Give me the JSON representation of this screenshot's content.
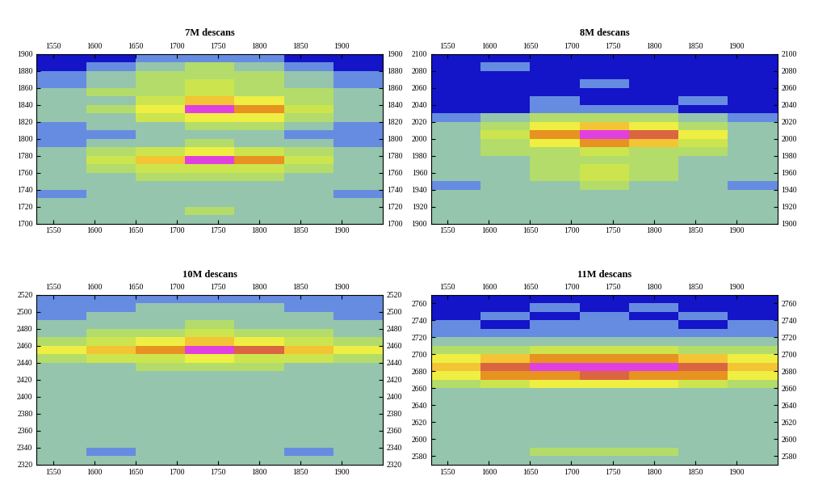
{
  "chart_data": [
    {
      "type": "heatmap",
      "title": "7M descans",
      "x_edges": [
        1530,
        1590,
        1650,
        1710,
        1770,
        1830,
        1890,
        1950
      ],
      "y_edges": [
        1700,
        1710,
        1720,
        1730,
        1740,
        1750,
        1760,
        1770,
        1780,
        1790,
        1800,
        1810,
        1820,
        1830,
        1840,
        1850,
        1860,
        1870,
        1880,
        1890,
        1900
      ],
      "cells": [
        [
          3,
          3,
          3,
          3,
          3,
          3,
          3
        ],
        [
          3,
          3,
          3,
          4,
          3,
          3,
          3
        ],
        [
          3,
          3,
          3,
          3,
          3,
          3,
          3
        ],
        [
          2,
          3,
          3,
          3,
          3,
          3,
          2
        ],
        [
          3,
          3,
          3,
          3,
          3,
          3,
          3
        ],
        [
          3,
          3,
          4,
          4,
          4,
          3,
          3
        ],
        [
          3,
          4,
          5,
          5,
          5,
          4,
          3
        ],
        [
          3,
          5,
          7,
          10,
          8,
          5,
          3
        ],
        [
          3,
          4,
          5,
          6,
          5,
          4,
          3
        ],
        [
          2,
          3,
          3,
          4,
          3,
          3,
          2
        ],
        [
          2,
          2,
          3,
          3,
          3,
          2,
          2
        ],
        [
          2,
          3,
          3,
          4,
          4,
          3,
          2
        ],
        [
          3,
          3,
          5,
          6,
          6,
          4,
          3
        ],
        [
          3,
          4,
          6,
          10,
          8,
          5,
          3
        ],
        [
          3,
          3,
          5,
          7,
          6,
          4,
          3
        ],
        [
          3,
          4,
          4,
          5,
          4,
          4,
          3
        ],
        [
          2,
          3,
          4,
          5,
          4,
          3,
          2
        ],
        [
          2,
          3,
          4,
          4,
          4,
          3,
          2
        ],
        [
          1,
          2,
          3,
          4,
          3,
          2,
          1
        ],
        [
          1,
          1,
          2,
          2,
          2,
          1,
          1
        ]
      ],
      "color_range": [
        1,
        10
      ],
      "xlim": [
        1530,
        1950
      ],
      "xticks": [
        1550,
        1600,
        1650,
        1700,
        1750,
        1800,
        1850,
        1900
      ],
      "ylim": [
        1700,
        1900
      ],
      "yticks": [
        1700,
        1720,
        1740,
        1760,
        1780,
        1800,
        1820,
        1840,
        1860,
        1880,
        1900
      ]
    },
    {
      "type": "heatmap",
      "title": "8M descans",
      "x_edges": [
        1530,
        1590,
        1650,
        1710,
        1770,
        1830,
        1890,
        1950
      ],
      "y_edges": [
        1900,
        1910,
        1920,
        1930,
        1940,
        1950,
        1960,
        1970,
        1980,
        1990,
        2000,
        2010,
        2020,
        2030,
        2040,
        2050,
        2060,
        2070,
        2080,
        2090,
        2100
      ],
      "cells": [
        [
          3,
          3,
          3,
          3,
          3,
          3,
          3
        ],
        [
          3,
          3,
          3,
          3,
          3,
          3,
          3
        ],
        [
          3,
          3,
          3,
          3,
          3,
          3,
          3
        ],
        [
          3,
          3,
          3,
          3,
          3,
          3,
          3
        ],
        [
          2,
          3,
          3,
          4,
          3,
          3,
          2
        ],
        [
          3,
          3,
          4,
          5,
          4,
          3,
          3
        ],
        [
          3,
          3,
          4,
          5,
          4,
          3,
          3
        ],
        [
          3,
          3,
          4,
          4,
          4,
          3,
          3
        ],
        [
          3,
          4,
          4,
          5,
          4,
          4,
          3
        ],
        [
          3,
          4,
          6,
          8,
          7,
          5,
          3
        ],
        [
          3,
          5,
          8,
          10,
          9,
          6,
          3
        ],
        [
          3,
          4,
          6,
          7,
          6,
          4,
          3
        ],
        [
          2,
          3,
          4,
          4,
          4,
          3,
          2
        ],
        [
          1,
          1,
          2,
          2,
          2,
          1,
          1
        ],
        [
          1,
          1,
          2,
          1,
          1,
          2,
          1
        ],
        [
          1,
          1,
          1,
          1,
          1,
          1,
          1
        ],
        [
          1,
          1,
          1,
          2,
          1,
          1,
          1
        ],
        [
          1,
          1,
          1,
          1,
          1,
          1,
          1
        ],
        [
          1,
          2,
          1,
          1,
          1,
          1,
          1
        ],
        [
          1,
          1,
          1,
          1,
          1,
          1,
          1
        ]
      ],
      "color_range": [
        1,
        10
      ],
      "xlim": [
        1530,
        1950
      ],
      "xticks": [
        1550,
        1600,
        1650,
        1700,
        1750,
        1800,
        1850,
        1900
      ],
      "ylim": [
        1900,
        2100
      ],
      "yticks": [
        1900,
        1920,
        1940,
        1960,
        1980,
        2000,
        2020,
        2040,
        2060,
        2080,
        2100
      ]
    },
    {
      "type": "heatmap",
      "title": "10M descans",
      "x_edges": [
        1530,
        1590,
        1650,
        1710,
        1770,
        1830,
        1890,
        1950
      ],
      "y_edges": [
        2320,
        2330,
        2340,
        2350,
        2360,
        2370,
        2380,
        2390,
        2400,
        2410,
        2420,
        2430,
        2440,
        2450,
        2460,
        2470,
        2480,
        2490,
        2500,
        2510,
        2520
      ],
      "cells": [
        [
          3,
          3,
          3,
          3,
          3,
          3,
          3
        ],
        [
          3,
          2,
          3,
          3,
          3,
          2,
          3
        ],
        [
          3,
          3,
          3,
          3,
          3,
          3,
          3
        ],
        [
          3,
          3,
          3,
          3,
          3,
          3,
          3
        ],
        [
          3,
          3,
          3,
          3,
          3,
          3,
          3
        ],
        [
          3,
          3,
          3,
          3,
          3,
          3,
          3
        ],
        [
          3,
          3,
          3,
          3,
          3,
          3,
          3
        ],
        [
          3,
          3,
          3,
          3,
          3,
          3,
          3
        ],
        [
          3,
          3,
          3,
          3,
          3,
          3,
          3
        ],
        [
          3,
          3,
          3,
          3,
          3,
          3,
          3
        ],
        [
          3,
          3,
          3,
          3,
          3,
          3,
          3
        ],
        [
          3,
          3,
          4,
          4,
          4,
          3,
          3
        ],
        [
          4,
          5,
          5,
          6,
          5,
          5,
          4
        ],
        [
          6,
          7,
          8,
          10,
          9,
          7,
          6
        ],
        [
          4,
          5,
          6,
          7,
          6,
          5,
          4
        ],
        [
          3,
          4,
          4,
          5,
          4,
          4,
          3
        ],
        [
          3,
          3,
          3,
          4,
          3,
          3,
          3
        ],
        [
          2,
          3,
          3,
          3,
          3,
          3,
          2
        ],
        [
          2,
          2,
          3,
          3,
          3,
          2,
          2
        ],
        [
          2,
          2,
          2,
          2,
          2,
          2,
          2
        ]
      ],
      "color_range": [
        1,
        10
      ],
      "xlim": [
        1530,
        1950
      ],
      "xticks": [
        1550,
        1600,
        1650,
        1700,
        1750,
        1800,
        1850,
        1900
      ],
      "ylim": [
        2320,
        2520
      ],
      "yticks": [
        2320,
        2340,
        2360,
        2380,
        2400,
        2420,
        2440,
        2460,
        2480,
        2500,
        2520
      ]
    },
    {
      "type": "heatmap",
      "title": "11M descans",
      "x_edges": [
        1530,
        1590,
        1650,
        1710,
        1770,
        1830,
        1890,
        1950
      ],
      "y_edges": [
        2570,
        2580,
        2590,
        2600,
        2610,
        2620,
        2630,
        2640,
        2650,
        2660,
        2670,
        2680,
        2690,
        2700,
        2710,
        2720,
        2730,
        2740,
        2750,
        2760,
        2770
      ],
      "cells": [
        [
          3,
          3,
          3,
          3,
          3,
          3,
          3
        ],
        [
          3,
          3,
          4,
          4,
          4,
          3,
          3
        ],
        [
          3,
          3,
          3,
          3,
          3,
          3,
          3
        ],
        [
          3,
          3,
          3,
          3,
          3,
          3,
          3
        ],
        [
          3,
          3,
          3,
          3,
          3,
          3,
          3
        ],
        [
          3,
          3,
          3,
          3,
          3,
          3,
          3
        ],
        [
          3,
          3,
          3,
          3,
          3,
          3,
          3
        ],
        [
          3,
          3,
          3,
          3,
          3,
          3,
          3
        ],
        [
          3,
          3,
          3,
          3,
          3,
          3,
          3
        ],
        [
          4,
          5,
          6,
          6,
          6,
          5,
          4
        ],
        [
          6,
          8,
          8,
          9,
          8,
          8,
          6
        ],
        [
          7,
          9,
          10,
          10,
          10,
          9,
          7
        ],
        [
          6,
          7,
          8,
          8,
          8,
          7,
          6
        ],
        [
          4,
          4,
          5,
          5,
          5,
          4,
          4
        ],
        [
          3,
          3,
          3,
          3,
          3,
          3,
          3
        ],
        [
          2,
          2,
          2,
          2,
          2,
          2,
          2
        ],
        [
          2,
          1,
          2,
          2,
          2,
          1,
          2
        ],
        [
          1,
          2,
          1,
          2,
          1,
          2,
          1
        ],
        [
          1,
          1,
          2,
          1,
          2,
          1,
          1
        ],
        [
          1,
          1,
          1,
          1,
          1,
          1,
          1
        ]
      ],
      "color_range": [
        1,
        10
      ],
      "xlim": [
        1530,
        1950
      ],
      "xticks": [
        1550,
        1600,
        1650,
        1700,
        1750,
        1800,
        1850,
        1900
      ],
      "ylim": [
        2570,
        2770
      ],
      "yticks": [
        2580,
        2600,
        2620,
        2640,
        2660,
        2680,
        2700,
        2720,
        2740,
        2760
      ]
    }
  ]
}
